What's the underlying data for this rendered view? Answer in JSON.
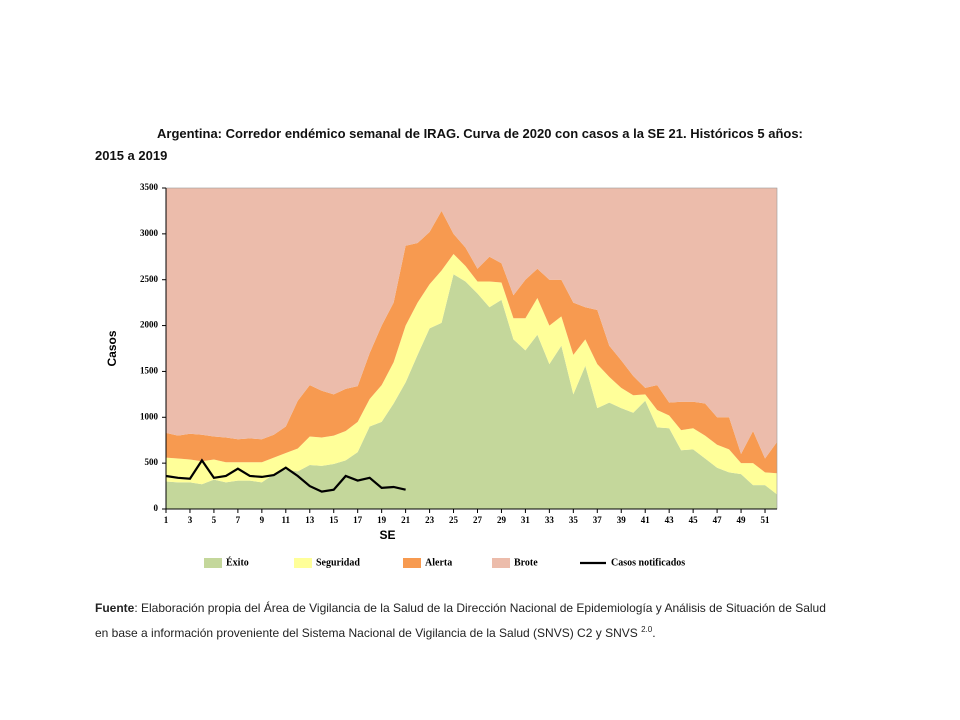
{
  "chart_data": {
    "type": "area",
    "title": "Argentina: Corredor endémico semanal de IRAG. Curva de 2020 con casos a la SE 21. Históricos 5 años: 2015 a 2019",
    "x_label": "SE",
    "y_label": "Casos",
    "x": [
      1,
      2,
      3,
      4,
      5,
      6,
      7,
      8,
      9,
      10,
      11,
      12,
      13,
      14,
      15,
      16,
      17,
      18,
      19,
      20,
      21,
      22,
      23,
      24,
      25,
      26,
      27,
      28,
      29,
      30,
      31,
      32,
      33,
      34,
      35,
      36,
      37,
      38,
      39,
      40,
      41,
      42,
      43,
      44,
      45,
      46,
      47,
      48,
      49,
      50,
      51,
      52
    ],
    "xlim": [
      1,
      52
    ],
    "xticks": [
      1,
      3,
      5,
      7,
      9,
      11,
      13,
      15,
      17,
      19,
      21,
      23,
      25,
      27,
      29,
      31,
      33,
      35,
      37,
      39,
      41,
      43,
      45,
      47,
      49,
      51
    ],
    "ylim": [
      0,
      3500
    ],
    "yticks": [
      0,
      500,
      1000,
      1500,
      2000,
      2500,
      3000,
      3500
    ],
    "stacked": true,
    "series": [
      {
        "name": "Éxito",
        "type": "area",
        "color": "#c4d79b",
        "values": [
          300,
          290,
          290,
          270,
          320,
          290,
          310,
          310,
          290,
          380,
          430,
          410,
          480,
          470,
          490,
          530,
          620,
          900,
          950,
          1150,
          1380,
          1680,
          1970,
          2030,
          2560,
          2480,
          2350,
          2200,
          2280,
          1850,
          1730,
          1900,
          1580,
          1780,
          1250,
          1560,
          1100,
          1160,
          1100,
          1050,
          1180,
          890,
          880,
          640,
          650,
          550,
          450,
          400,
          380,
          260,
          260,
          160
        ]
      },
      {
        "name": "Seguridad",
        "type": "area",
        "color": "#ffff99",
        "values": [
          260,
          260,
          250,
          250,
          220,
          220,
          200,
          200,
          220,
          180,
          180,
          250,
          310,
          310,
          310,
          320,
          330,
          300,
          400,
          450,
          620,
          570,
          480,
          570,
          220,
          170,
          130,
          280,
          190,
          230,
          350,
          400,
          420,
          320,
          430,
          290,
          480,
          280,
          220,
          190,
          70,
          190,
          140,
          220,
          230,
          250,
          250,
          250,
          120,
          240,
          140,
          230
        ]
      },
      {
        "name": "Alerta",
        "type": "area",
        "color": "#f79a50",
        "values": [
          270,
          250,
          280,
          290,
          250,
          270,
          250,
          260,
          250,
          250,
          290,
          520,
          560,
          510,
          450,
          460,
          390,
          500,
          650,
          650,
          870,
          650,
          570,
          650,
          220,
          200,
          140,
          270,
          210,
          250,
          420,
          320,
          500,
          400,
          570,
          350,
          590,
          340,
          300,
          210,
          70,
          270,
          140,
          310,
          290,
          350,
          300,
          350,
          100,
          350,
          150,
          340
        ]
      },
      {
        "name": "Brote",
        "type": "area",
        "color": "#ecbcab"
      },
      {
        "name": "Casos notificados",
        "type": "line",
        "color": "#000000",
        "values": [
          360,
          340,
          330,
          530,
          340,
          360,
          440,
          360,
          350,
          370,
          450,
          360,
          250,
          190,
          210,
          360,
          310,
          340,
          230,
          240,
          210,
          null,
          null,
          null,
          null,
          null,
          null,
          null,
          null,
          null,
          null,
          null,
          null,
          null,
          null,
          null,
          null,
          null,
          null,
          null,
          null,
          null,
          null,
          null,
          null,
          null,
          null,
          null,
          null,
          null,
          null,
          null
        ]
      }
    ]
  },
  "source": {
    "label": "Fuente",
    "text": ": Elaboración propia del Área de Vigilancia de la Salud de la Dirección Nacional de Epidemiología y Análisis de Situación de Salud en base a información proveniente del Sistema Nacional de Vigilancia de la Salud (SNVS) C2 y SNVS ",
    "sup": "2.0",
    "end": "."
  }
}
